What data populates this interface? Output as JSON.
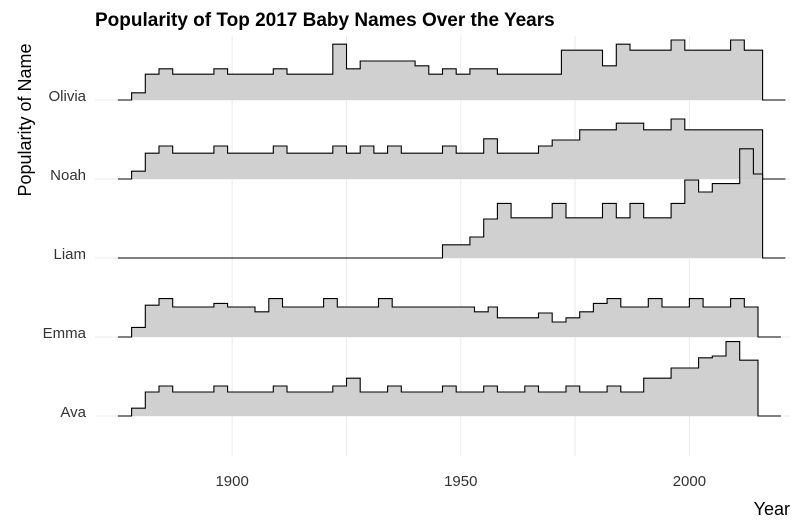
{
  "chart_data": {
    "type": "ridgeline",
    "title": "Popularity of Top 2017 Baby Names Over the Years",
    "xlabel": "Year",
    "ylabel": "Popularity of Name",
    "xlim": [
      1870,
      2022
    ],
    "x_ticks": [
      1900,
      1950,
      2000
    ],
    "grid": true,
    "fill_color": "#cccccc",
    "line_color": "#000000",
    "categories": [
      "Olivia",
      "Noah",
      "Liam",
      "Emma",
      "Ava"
    ],
    "series": [
      {
        "name": "Olivia",
        "points": [
          [
            1875,
            0
          ],
          [
            1878,
            0.12
          ],
          [
            1881,
            0.43
          ],
          [
            1884,
            0.52
          ],
          [
            1887,
            0.43
          ],
          [
            1896,
            0.52
          ],
          [
            1899,
            0.43
          ],
          [
            1909,
            0.52
          ],
          [
            1912,
            0.43
          ],
          [
            1922,
            0.93
          ],
          [
            1925,
            0.52
          ],
          [
            1928,
            0.65
          ],
          [
            1940,
            0.57
          ],
          [
            1943,
            0.43
          ],
          [
            1946,
            0.52
          ],
          [
            1949,
            0.43
          ],
          [
            1952,
            0.52
          ],
          [
            1958,
            0.43
          ],
          [
            1972,
            0.83
          ],
          [
            1981,
            0.57
          ],
          [
            1984,
            0.93
          ],
          [
            1987,
            0.83
          ],
          [
            1996,
            1.0
          ],
          [
            1999,
            0.83
          ],
          [
            2009,
            1.0
          ],
          [
            2012,
            0.83
          ],
          [
            2016,
            0
          ],
          [
            2021,
            0
          ]
        ]
      },
      {
        "name": "Noah",
        "points": [
          [
            1875,
            0
          ],
          [
            1878,
            0.13
          ],
          [
            1881,
            0.43
          ],
          [
            1884,
            0.55
          ],
          [
            1887,
            0.43
          ],
          [
            1896,
            0.55
          ],
          [
            1899,
            0.43
          ],
          [
            1909,
            0.55
          ],
          [
            1912,
            0.43
          ],
          [
            1922,
            0.55
          ],
          [
            1925,
            0.43
          ],
          [
            1928,
            0.55
          ],
          [
            1931,
            0.43
          ],
          [
            1934,
            0.55
          ],
          [
            1937,
            0.43
          ],
          [
            1946,
            0.55
          ],
          [
            1949,
            0.43
          ],
          [
            1955,
            0.67
          ],
          [
            1958,
            0.43
          ],
          [
            1967,
            0.55
          ],
          [
            1970,
            0.65
          ],
          [
            1976,
            0.82
          ],
          [
            1984,
            0.93
          ],
          [
            1990,
            0.82
          ],
          [
            1996,
            1.0
          ],
          [
            1999,
            0.82
          ],
          [
            2012,
            0.82
          ],
          [
            2016,
            0
          ],
          [
            2021,
            0
          ]
        ]
      },
      {
        "name": "Liam",
        "points": [
          [
            1875,
            0
          ],
          [
            1945,
            0
          ],
          [
            1946,
            0.22
          ],
          [
            1952,
            0.35
          ],
          [
            1955,
            0.65
          ],
          [
            1958,
            0.91
          ],
          [
            1961,
            0.67
          ],
          [
            1970,
            0.91
          ],
          [
            1973,
            0.67
          ],
          [
            1981,
            0.91
          ],
          [
            1984,
            0.67
          ],
          [
            1987,
            0.91
          ],
          [
            1990,
            0.67
          ],
          [
            1996,
            0.91
          ],
          [
            1999,
            1.3
          ],
          [
            2002,
            1.1
          ],
          [
            2005,
            1.24
          ],
          [
            2011,
            1.82
          ],
          [
            2014,
            1.4
          ],
          [
            2016,
            0
          ],
          [
            2021,
            0
          ]
        ]
      },
      {
        "name": "Emma",
        "points": [
          [
            1875,
            0
          ],
          [
            1878,
            0.16
          ],
          [
            1881,
            0.53
          ],
          [
            1884,
            0.64
          ],
          [
            1887,
            0.5
          ],
          [
            1896,
            0.56
          ],
          [
            1899,
            0.5
          ],
          [
            1905,
            0.42
          ],
          [
            1908,
            0.64
          ],
          [
            1911,
            0.5
          ],
          [
            1920,
            0.64
          ],
          [
            1923,
            0.5
          ],
          [
            1932,
            0.64
          ],
          [
            1935,
            0.5
          ],
          [
            1953,
            0.42
          ],
          [
            1956,
            0.5
          ],
          [
            1958,
            0.32
          ],
          [
            1967,
            0.4
          ],
          [
            1970,
            0.25
          ],
          [
            1973,
            0.32
          ],
          [
            1976,
            0.42
          ],
          [
            1979,
            0.56
          ],
          [
            1982,
            0.64
          ],
          [
            1985,
            0.5
          ],
          [
            1991,
            0.64
          ],
          [
            1994,
            0.5
          ],
          [
            2000,
            0.64
          ],
          [
            2003,
            0.5
          ],
          [
            2009,
            0.64
          ],
          [
            2012,
            0.5
          ],
          [
            2015,
            0
          ],
          [
            2020,
            0
          ]
        ]
      },
      {
        "name": "Ava",
        "points": [
          [
            1875,
            0
          ],
          [
            1878,
            0.13
          ],
          [
            1881,
            0.4
          ],
          [
            1884,
            0.5
          ],
          [
            1887,
            0.4
          ],
          [
            1896,
            0.5
          ],
          [
            1899,
            0.4
          ],
          [
            1909,
            0.5
          ],
          [
            1912,
            0.4
          ],
          [
            1922,
            0.5
          ],
          [
            1925,
            0.63
          ],
          [
            1928,
            0.4
          ],
          [
            1934,
            0.5
          ],
          [
            1937,
            0.4
          ],
          [
            1946,
            0.5
          ],
          [
            1949,
            0.4
          ],
          [
            1955,
            0.5
          ],
          [
            1958,
            0.4
          ],
          [
            1964,
            0.5
          ],
          [
            1967,
            0.4
          ],
          [
            1973,
            0.5
          ],
          [
            1976,
            0.4
          ],
          [
            1982,
            0.5
          ],
          [
            1985,
            0.4
          ],
          [
            1990,
            0.63
          ],
          [
            1996,
            0.8
          ],
          [
            2002,
            0.97
          ],
          [
            2005,
            1.0
          ],
          [
            2008,
            1.24
          ],
          [
            2011,
            0.93
          ],
          [
            2015,
            0
          ],
          [
            2020,
            0
          ]
        ]
      }
    ]
  }
}
